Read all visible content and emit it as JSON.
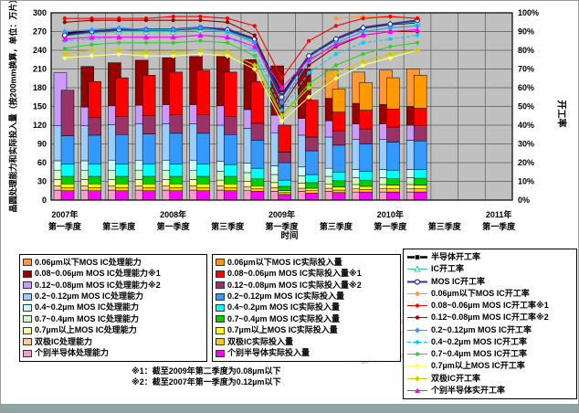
{
  "page": {
    "colors": {
      "plot_bg": "#C0C0C0",
      "grid": "#5a5a5a",
      "plot_border": "#000000",
      "bottom_bar": "#8FA5A5",
      "watermark": "rgba(205,40,40,0.25)"
    },
    "watermark_text": "技术"
  },
  "axis": {
    "y_left_label": "晶圆处理能力和实际投入量（按200mm换算，单位：万片）",
    "y_right_label": "开工率",
    "x_label": "时间"
  },
  "footnotes": [
    "※1：截至2009年第二季度为0.08µm以下",
    "※2：截至2007年第一季度为0.12µm以下"
  ],
  "chart_data": {
    "type": "combo: stacked bar (capacity + actual input, dual bars per quarter) + line (utilization %, right axis)",
    "title": "",
    "y_left": {
      "label": "晶圆处理能力和实际投入量（按200mm换算，单位：万片）",
      "min": 0,
      "max": 300,
      "step": 30
    },
    "y_right": {
      "label": "开工率",
      "min": 0,
      "max": 100,
      "step": 10,
      "unit": "%"
    },
    "x": {
      "label": "时间",
      "num_slots": 17,
      "ticks": [
        {
          "slot": 0,
          "year": "2007年",
          "quarter": "第一季度"
        },
        {
          "slot": 2,
          "year": "",
          "quarter": "第三季度"
        },
        {
          "slot": 4,
          "year": "2008年",
          "quarter": "第一季度"
        },
        {
          "slot": 6,
          "year": "",
          "quarter": "第三季度"
        },
        {
          "slot": 8,
          "year": "2009年",
          "quarter": "第一季度"
        },
        {
          "slot": 10,
          "year": "",
          "quarter": "第三季度"
        },
        {
          "slot": 12,
          "year": "2010年",
          "quarter": "第一季度"
        },
        {
          "slot": 14,
          "year": "",
          "quarter": "第三季度"
        },
        {
          "slot": 16,
          "year": "2011年",
          "quarter": "第一季度"
        }
      ]
    },
    "quarters_with_data": [
      "2007Q1",
      "2007Q2",
      "2007Q3",
      "2007Q4",
      "2008Q1",
      "2008Q2",
      "2008Q3",
      "2008Q4",
      "2009Q1",
      "2009Q2",
      "2009Q3",
      "2009Q4",
      "2010Q1",
      "2010Q2"
    ],
    "capacity_series": [
      {
        "name": "个别半导体处理能力",
        "color": "#FF99CC",
        "values": [
          16,
          16,
          16,
          16,
          16,
          16,
          16,
          15,
          14,
          14,
          14,
          13,
          13,
          13
        ]
      },
      {
        "name": "双极IC处理能力",
        "color": "#FFCC99",
        "values": [
          7,
          7,
          7,
          7,
          7,
          7,
          7,
          6,
          6,
          5,
          5,
          5,
          5,
          5
        ]
      },
      {
        "name": "0.7µm以上MOS IC处理能力",
        "color": "#FFFF99",
        "values": [
          10,
          10,
          10,
          10,
          10,
          10,
          9,
          9,
          8,
          8,
          7,
          7,
          7,
          7
        ]
      },
      {
        "name": "0.7~0.4µm MOS IC处理能力",
        "color": "#CCFFCC",
        "values": [
          15,
          15,
          15,
          15,
          15,
          15,
          14,
          14,
          13,
          12,
          12,
          11,
          11,
          11
        ]
      },
      {
        "name": "0.4~0.2µm MOS IC处理能力",
        "color": "#CCFFFF",
        "values": [
          15,
          15,
          16,
          16,
          16,
          16,
          16,
          15,
          14,
          14,
          13,
          13,
          13,
          13
        ]
      },
      {
        "name": "0.2~0.12µm MOS IC处理能力",
        "color": "#99CCFF",
        "values": [
          56,
          56,
          57,
          58,
          58,
          58,
          58,
          56,
          53,
          51,
          50,
          48,
          48,
          47
        ]
      },
      {
        "name": "0.12~0.08µm MOS IC处理能力※2",
        "color": "#CC99FF",
        "values": [
          85,
          30,
          30,
          30,
          31,
          31,
          31,
          30,
          28,
          27,
          26,
          25,
          25,
          24
        ]
      },
      {
        "name": "0.08~0.06µm MOS IC处理能力※1",
        "color": "#990000",
        "values": [
          0,
          65,
          69,
          72,
          75,
          77,
          79,
          80,
          79,
          79,
          36,
          33,
          31,
          30
        ]
      },
      {
        "name": "0.06µm以下MOS IC处理能力",
        "color": "#FF9933",
        "values": [
          0,
          0,
          0,
          0,
          0,
          0,
          0,
          0,
          0,
          0,
          45,
          50,
          55,
          60
        ]
      }
    ],
    "actual_series": [
      {
        "name": "个别半导体实际投入量",
        "color": "#FF00FF",
        "values": [
          15,
          15,
          15,
          15,
          15,
          15,
          15,
          14,
          9,
          11,
          12,
          13,
          13,
          13
        ]
      },
      {
        "name": "双极IC实际投入量",
        "color": "#FFCC00",
        "values": [
          5,
          5,
          5,
          5,
          5,
          5,
          5,
          4,
          3,
          4,
          4,
          4,
          5,
          5
        ]
      },
      {
        "name": "0.7µm以上MOS IC实际投入量",
        "color": "#FFFF00",
        "values": [
          6,
          6,
          6,
          6,
          6,
          6,
          6,
          5,
          3,
          4,
          5,
          5,
          6,
          6
        ]
      },
      {
        "name": "0.7~0.4µm MOS IC实际投入量",
        "color": "#00CC00",
        "values": [
          12,
          12,
          12,
          12,
          12,
          12,
          12,
          11,
          7,
          9,
          10,
          10,
          10,
          11
        ]
      },
      {
        "name": "0.4~0.2µm MOS IC实际投入量",
        "color": "#00FFFF",
        "values": [
          20,
          20,
          20,
          20,
          20,
          20,
          19,
          17,
          10,
          13,
          14,
          14,
          14,
          14
        ]
      },
      {
        "name": "0.2~0.12µm MOS IC实际投入量",
        "color": "#3399FF",
        "values": [
          45,
          46,
          47,
          48,
          49,
          49,
          48,
          45,
          28,
          38,
          43,
          44,
          45,
          46
        ]
      },
      {
        "name": "0.12~0.08µm MOS IC实际投入量※2",
        "color": "#993366",
        "values": [
          73,
          28,
          29,
          29,
          30,
          30,
          29,
          27,
          17,
          22,
          23,
          24,
          24,
          24
        ]
      },
      {
        "name": "0.08~0.06µm MOS IC实际投入量※1",
        "color": "#FF0000",
        "values": [
          0,
          58,
          62,
          65,
          68,
          71,
          71,
          67,
          43,
          59,
          30,
          30,
          29,
          28
        ]
      },
      {
        "name": "0.06µm以下MOS IC实际投入量",
        "color": "#FF9900",
        "values": [
          0,
          0,
          0,
          0,
          0,
          0,
          0,
          0,
          0,
          0,
          37,
          44,
          50,
          53
        ]
      }
    ],
    "line_series": [
      {
        "name": "半导体开工率",
        "color": "#000000",
        "marker": "square",
        "width": 2.4,
        "values": [
          89,
          90,
          91,
          91,
          91,
          92,
          91,
          86,
          56,
          77,
          86,
          92,
          94,
          95
        ]
      },
      {
        "name": "IC开工率",
        "color": "#33CC99",
        "marker": "triangle-open",
        "width": 1.1,
        "values": [
          88,
          89,
          90,
          90,
          90,
          91,
          90,
          85,
          55,
          76,
          86,
          92,
          94,
          95
        ]
      },
      {
        "name": "MOS IC开工率",
        "color": "#333399",
        "marker": "circle-open",
        "width": 2.0,
        "values": [
          88,
          90,
          91,
          91,
          91,
          92,
          91,
          86,
          55,
          77,
          86,
          92,
          94,
          96
        ]
      },
      {
        "name": "0.06µm以下MOS IC开工率",
        "color": "#FF9933",
        "marker": "diamond",
        "width": 1.1,
        "values": [
          null,
          null,
          null,
          null,
          null,
          null,
          null,
          null,
          null,
          null,
          97,
          98,
          98,
          97
        ]
      },
      {
        "name": "0.08~0.06µm MOS IC开工率※1",
        "color": "#FF0000",
        "marker": "circle",
        "width": 1.1,
        "values": [
          97,
          97,
          97,
          97,
          98,
          98,
          97,
          93,
          65,
          85,
          93,
          97,
          98,
          97
        ]
      },
      {
        "name": "0.12~0.08µm MOS IC开工率※2",
        "color": "#990000",
        "marker": "circle",
        "width": 1.1,
        "values": [
          95,
          96,
          96,
          96,
          96,
          96,
          95,
          88,
          50,
          72,
          82,
          88,
          90,
          90
        ]
      },
      {
        "name": "0.2~0.12µm MOS IC开工率",
        "color": "#3399FF",
        "marker": "diamond",
        "width": 1.1,
        "values": [
          90,
          91,
          92,
          91,
          91,
          92,
          90,
          84,
          52,
          74,
          84,
          90,
          92,
          93
        ]
      },
      {
        "name": "0.4~0.2µm MOS IC开工率",
        "color": "#00CCFF",
        "marker": "circle",
        "width": 1.1,
        "dash": "4,2",
        "values": [
          85,
          86,
          87,
          87,
          87,
          88,
          87,
          80,
          48,
          68,
          78,
          84,
          86,
          88
        ]
      },
      {
        "name": "0.7~0.4µm MOS IC开工率",
        "color": "#33CC33",
        "marker": "circle",
        "width": 1.1,
        "values": [
          81,
          83,
          84,
          84,
          84,
          85,
          84,
          77,
          45,
          62,
          72,
          78,
          82,
          84
        ]
      },
      {
        "name": "0.7µm以上MOS IC开工率",
        "color": "#FFFF66",
        "marker": "diamond",
        "width": 1.1,
        "values": [
          76,
          77,
          78,
          77,
          77,
          78,
          77,
          70,
          42,
          55,
          65,
          72,
          76,
          80
        ]
      },
      {
        "name": "双极IC开工率",
        "color": "#CCCC00",
        "marker": "diamond",
        "width": 1.1,
        "values": [
          78,
          80,
          80,
          79,
          79,
          80,
          79,
          72,
          45,
          60,
          68,
          74,
          78,
          80
        ]
      },
      {
        "name": "个别半导体实开工率",
        "color": "#FF00FF",
        "marker": "triangle",
        "width": 1.1,
        "values": [
          86,
          87,
          87,
          87,
          87,
          88,
          87,
          82,
          60,
          75,
          83,
          88,
          90,
          91
        ]
      }
    ]
  }
}
